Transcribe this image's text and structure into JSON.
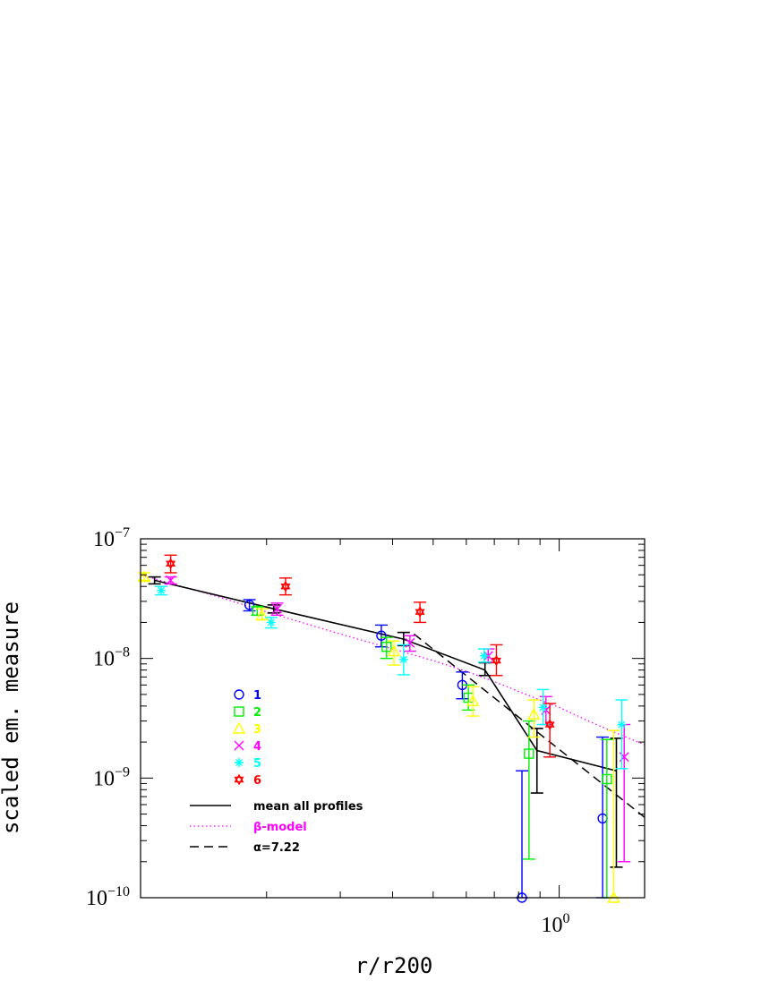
{
  "chart_data": {
    "type": "scatter",
    "xlabel": "r/r200",
    "ylabel": "scaled em. measure",
    "x_scale": "log",
    "y_scale": "log",
    "xlim": [
      0.1,
      1.6
    ],
    "ylim": [
      1e-10,
      1e-07
    ],
    "x_ticklabels": [
      {
        "value": 1.0,
        "base": "10",
        "exp": "0"
      }
    ],
    "y_ticklabels": [
      {
        "value": 1e-07,
        "base": "10",
        "exp": "−7"
      },
      {
        "value": 1e-08,
        "base": "10",
        "exp": "−8"
      },
      {
        "value": 1e-09,
        "base": "10",
        "exp": "−9"
      },
      {
        "value": 1e-10,
        "base": "10",
        "exp": "−10"
      }
    ],
    "point_series": [
      {
        "name": "1",
        "marker": "circle",
        "color": "#0000ff",
        "points": [
          {
            "x": 0.182,
            "y": 2.8e-08,
            "lo": 2.5e-08,
            "hi": 3.1e-08
          },
          {
            "x": 0.376,
            "y": 1.55e-08,
            "lo": 1.25e-08,
            "hi": 1.9e-08
          },
          {
            "x": 0.587,
            "y": 6e-09,
            "lo": 4.6e-09,
            "hi": 7.7e-09
          },
          {
            "x": 0.815,
            "y": 1e-10,
            "lo": 1e-10,
            "hi": 1.15e-09
          },
          {
            "x": 1.27,
            "y": 4.6e-10,
            "lo": 1e-10,
            "hi": 2.2e-09
          }
        ]
      },
      {
        "name": "2",
        "marker": "square",
        "color": "#00ee00",
        "points": [
          {
            "x": 0.19,
            "y": 2.5e-08,
            "lo": 2.3e-08,
            "hi": 2.7e-08
          },
          {
            "x": 0.387,
            "y": 1.25e-08,
            "lo": 1e-08,
            "hi": 1.5e-08
          },
          {
            "x": 0.607,
            "y": 4.7e-09,
            "lo": 3.7e-09,
            "hi": 6e-09
          },
          {
            "x": 0.847,
            "y": 1.6e-09,
            "lo": 2.1e-10,
            "hi": 3e-09
          },
          {
            "x": 1.3,
            "y": 9.8e-10,
            "lo": 1e-10,
            "hi": 2.1e-09
          }
        ]
      },
      {
        "name": "3",
        "marker": "triangle",
        "color": "#ffff00",
        "points": [
          {
            "x": 0.102,
            "y": 4.8e-08,
            "lo": 4.5e-08,
            "hi": 5.2e-08
          },
          {
            "x": 0.195,
            "y": 2.3e-08,
            "lo": 2.1e-08,
            "hi": 2.6e-08
          },
          {
            "x": 0.403,
            "y": 1.15e-08,
            "lo": 8.8e-09,
            "hi": 1.4e-08
          },
          {
            "x": 0.622,
            "y": 4.4e-09,
            "lo": 3.3e-09,
            "hi": 5.8e-09
          },
          {
            "x": 0.87,
            "y": 3.4e-09,
            "lo": 2.2e-09,
            "hi": 4.5e-09
          },
          {
            "x": 1.35,
            "y": 1e-10,
            "lo": 1e-10,
            "hi": 2.5e-09
          }
        ]
      },
      {
        "name": "4",
        "marker": "cross",
        "color": "#ff00ff",
        "points": [
          {
            "x": 0.118,
            "y": 4.5e-08,
            "lo": 4.2e-08,
            "hi": 4.8e-08
          },
          {
            "x": 0.212,
            "y": 2.6e-08,
            "lo": 2.3e-08,
            "hi": 2.9e-08
          },
          {
            "x": 0.44,
            "y": 1.35e-08,
            "lo": 1.15e-08,
            "hi": 1.55e-08
          },
          {
            "x": 0.677,
            "y": 1.05e-08,
            "lo": 9.3e-09,
            "hi": 1.2e-08
          },
          {
            "x": 0.93,
            "y": 3.7e-09,
            "lo": 2.8e-09,
            "hi": 4.8e-09
          },
          {
            "x": 1.43,
            "y": 1.5e-09,
            "lo": 2e-10,
            "hi": 2.8e-09
          }
        ]
      },
      {
        "name": "5",
        "marker": "asterisk",
        "color": "#00ffff",
        "points": [
          {
            "x": 0.112,
            "y": 3.7e-08,
            "lo": 3.4e-08,
            "hi": 4e-08
          },
          {
            "x": 0.205,
            "y": 2e-08,
            "lo": 1.8e-08,
            "hi": 2.2e-08
          },
          {
            "x": 0.425,
            "y": 9.8e-09,
            "lo": 7.3e-09,
            "hi": 1.3e-08
          },
          {
            "x": 0.662,
            "y": 1.05e-08,
            "lo": 9.3e-09,
            "hi": 1.2e-08
          },
          {
            "x": 0.915,
            "y": 3.9e-09,
            "lo": 2.8e-09,
            "hi": 5.5e-09
          },
          {
            "x": 1.41,
            "y": 2.8e-09,
            "lo": 1.2e-09,
            "hi": 4.5e-09
          }
        ]
      },
      {
        "name": "6",
        "marker": "star",
        "color": "#ff0000",
        "points": [
          {
            "x": 0.118,
            "y": 6.2e-08,
            "lo": 5.2e-08,
            "hi": 7.3e-08
          },
          {
            "x": 0.222,
            "y": 4e-08,
            "lo": 3.4e-08,
            "hi": 4.7e-08
          },
          {
            "x": 0.465,
            "y": 2.45e-08,
            "lo": 2e-08,
            "hi": 2.95e-08
          },
          {
            "x": 0.708,
            "y": 9.6e-09,
            "lo": 7.2e-09,
            "hi": 1.3e-08
          },
          {
            "x": 0.95,
            "y": 2.8e-09,
            "lo": 1.5e-09,
            "hi": 4.2e-09
          }
        ]
      }
    ],
    "mean_profile": {
      "name": "mean all profiles",
      "color": "#000000",
      "points": [
        {
          "x": 0.108,
          "y": 4.5e-08,
          "lo": 4.2e-08,
          "hi": 4.8e-08
        },
        {
          "x": 0.208,
          "y": 2.6e-08,
          "lo": 2.4e-08,
          "hi": 2.8e-08
        },
        {
          "x": 0.425,
          "y": 1.45e-08,
          "lo": 1.28e-08,
          "hi": 1.65e-08
        },
        {
          "x": 0.665,
          "y": 8e-09,
          "lo": 7.2e-09,
          "hi": 9.2e-09
        },
        {
          "x": 0.885,
          "y": 1.7e-09,
          "lo": 7.5e-10,
          "hi": 2.6e-09
        },
        {
          "x": 1.37,
          "y": 1.15e-09,
          "lo": 1.8e-10,
          "hi": 2.15e-09
        }
      ]
    },
    "beta_model": {
      "name": "β-model",
      "color": "#ff00ff",
      "x": [
        0.1,
        0.15,
        0.2,
        0.3,
        0.4,
        0.5,
        0.6,
        0.7,
        0.8,
        0.9,
        1.0,
        1.2,
        1.4,
        1.6
      ],
      "y": [
        5e-08,
        3.35e-08,
        2.45e-08,
        1.6e-08,
        1.2e-08,
        9.6e-09,
        7.8e-09,
        6.4e-09,
        5.3e-09,
        4.5e-09,
        3.9e-09,
        2.9e-09,
        2.3e-09,
        1.9e-09
      ]
    },
    "alpha_fit": {
      "name": "α=7.22",
      "color": "#000000",
      "x": [
        0.45,
        1.6
      ],
      "y": [
        1.6e-08,
        4.7e-10
      ]
    },
    "legend": {
      "placement": "lower-left",
      "entries": [
        "1",
        "2",
        "3",
        "4",
        "5",
        "6"
      ],
      "line_entries": [
        "mean all profiles",
        "β-model",
        "α=7.22"
      ]
    }
  }
}
